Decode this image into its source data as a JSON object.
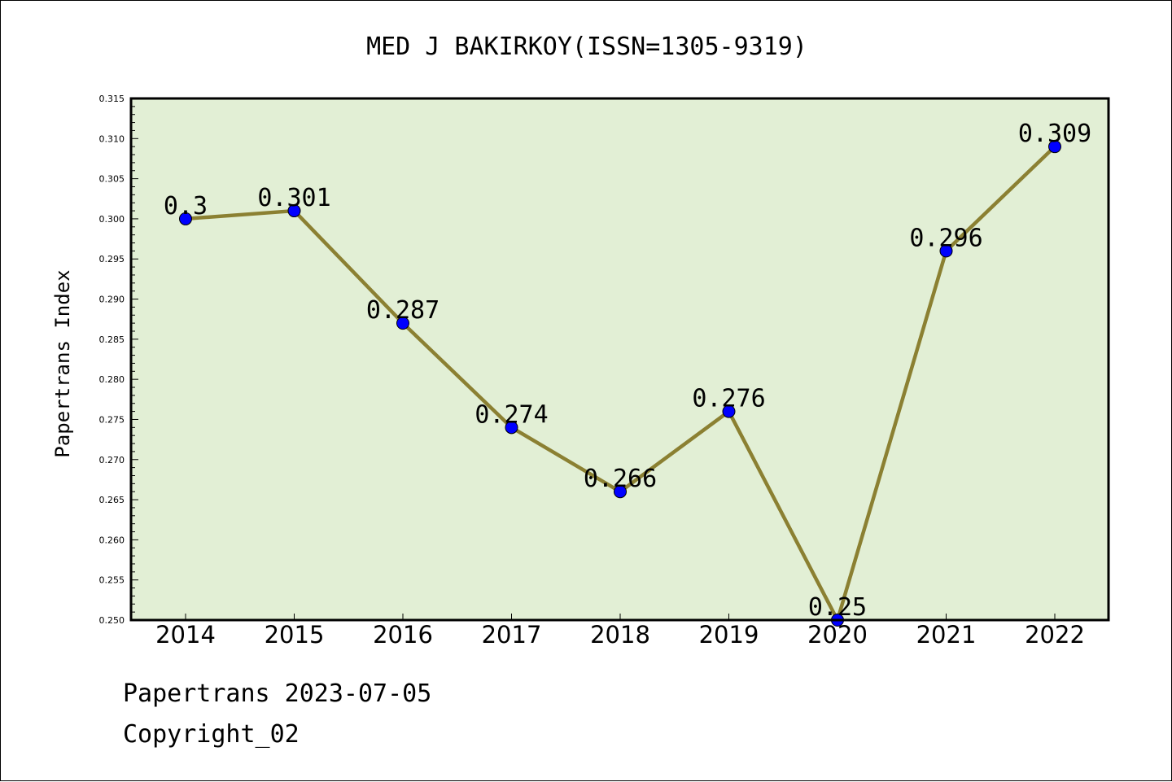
{
  "chart_data": {
    "type": "line",
    "title": "MED J BAKIRKOY(ISSN=1305-9319)",
    "xlabel": "",
    "ylabel": "Papertrans Index",
    "categories": [
      "2014",
      "2015",
      "2016",
      "2017",
      "2018",
      "2019",
      "2020",
      "2021",
      "2022"
    ],
    "series": [
      {
        "values": [
          0.3,
          0.301,
          0.287,
          0.274,
          0.266,
          0.276,
          0.25,
          0.296,
          0.309
        ],
        "data_labels": [
          "0.3",
          "0.301",
          "0.287",
          "0.274",
          "0.266",
          "0.276",
          "0.25",
          "0.296",
          "0.309"
        ],
        "line_color": "#8b8032",
        "marker_color": "#0000ff"
      }
    ],
    "ylim": [
      0.25,
      0.315
    ],
    "yticks": [
      "0.250",
      "0.255",
      "0.260",
      "0.265",
      "0.270",
      "0.275",
      "0.280",
      "0.285",
      "0.290",
      "0.295",
      "0.300",
      "0.305",
      "0.310",
      "0.315"
    ],
    "grid": false,
    "legend": "none",
    "plot_background": "#e2efd5"
  },
  "footer": {
    "line1": "Papertrans 2023-07-05",
    "line2": "Copyright_02"
  }
}
